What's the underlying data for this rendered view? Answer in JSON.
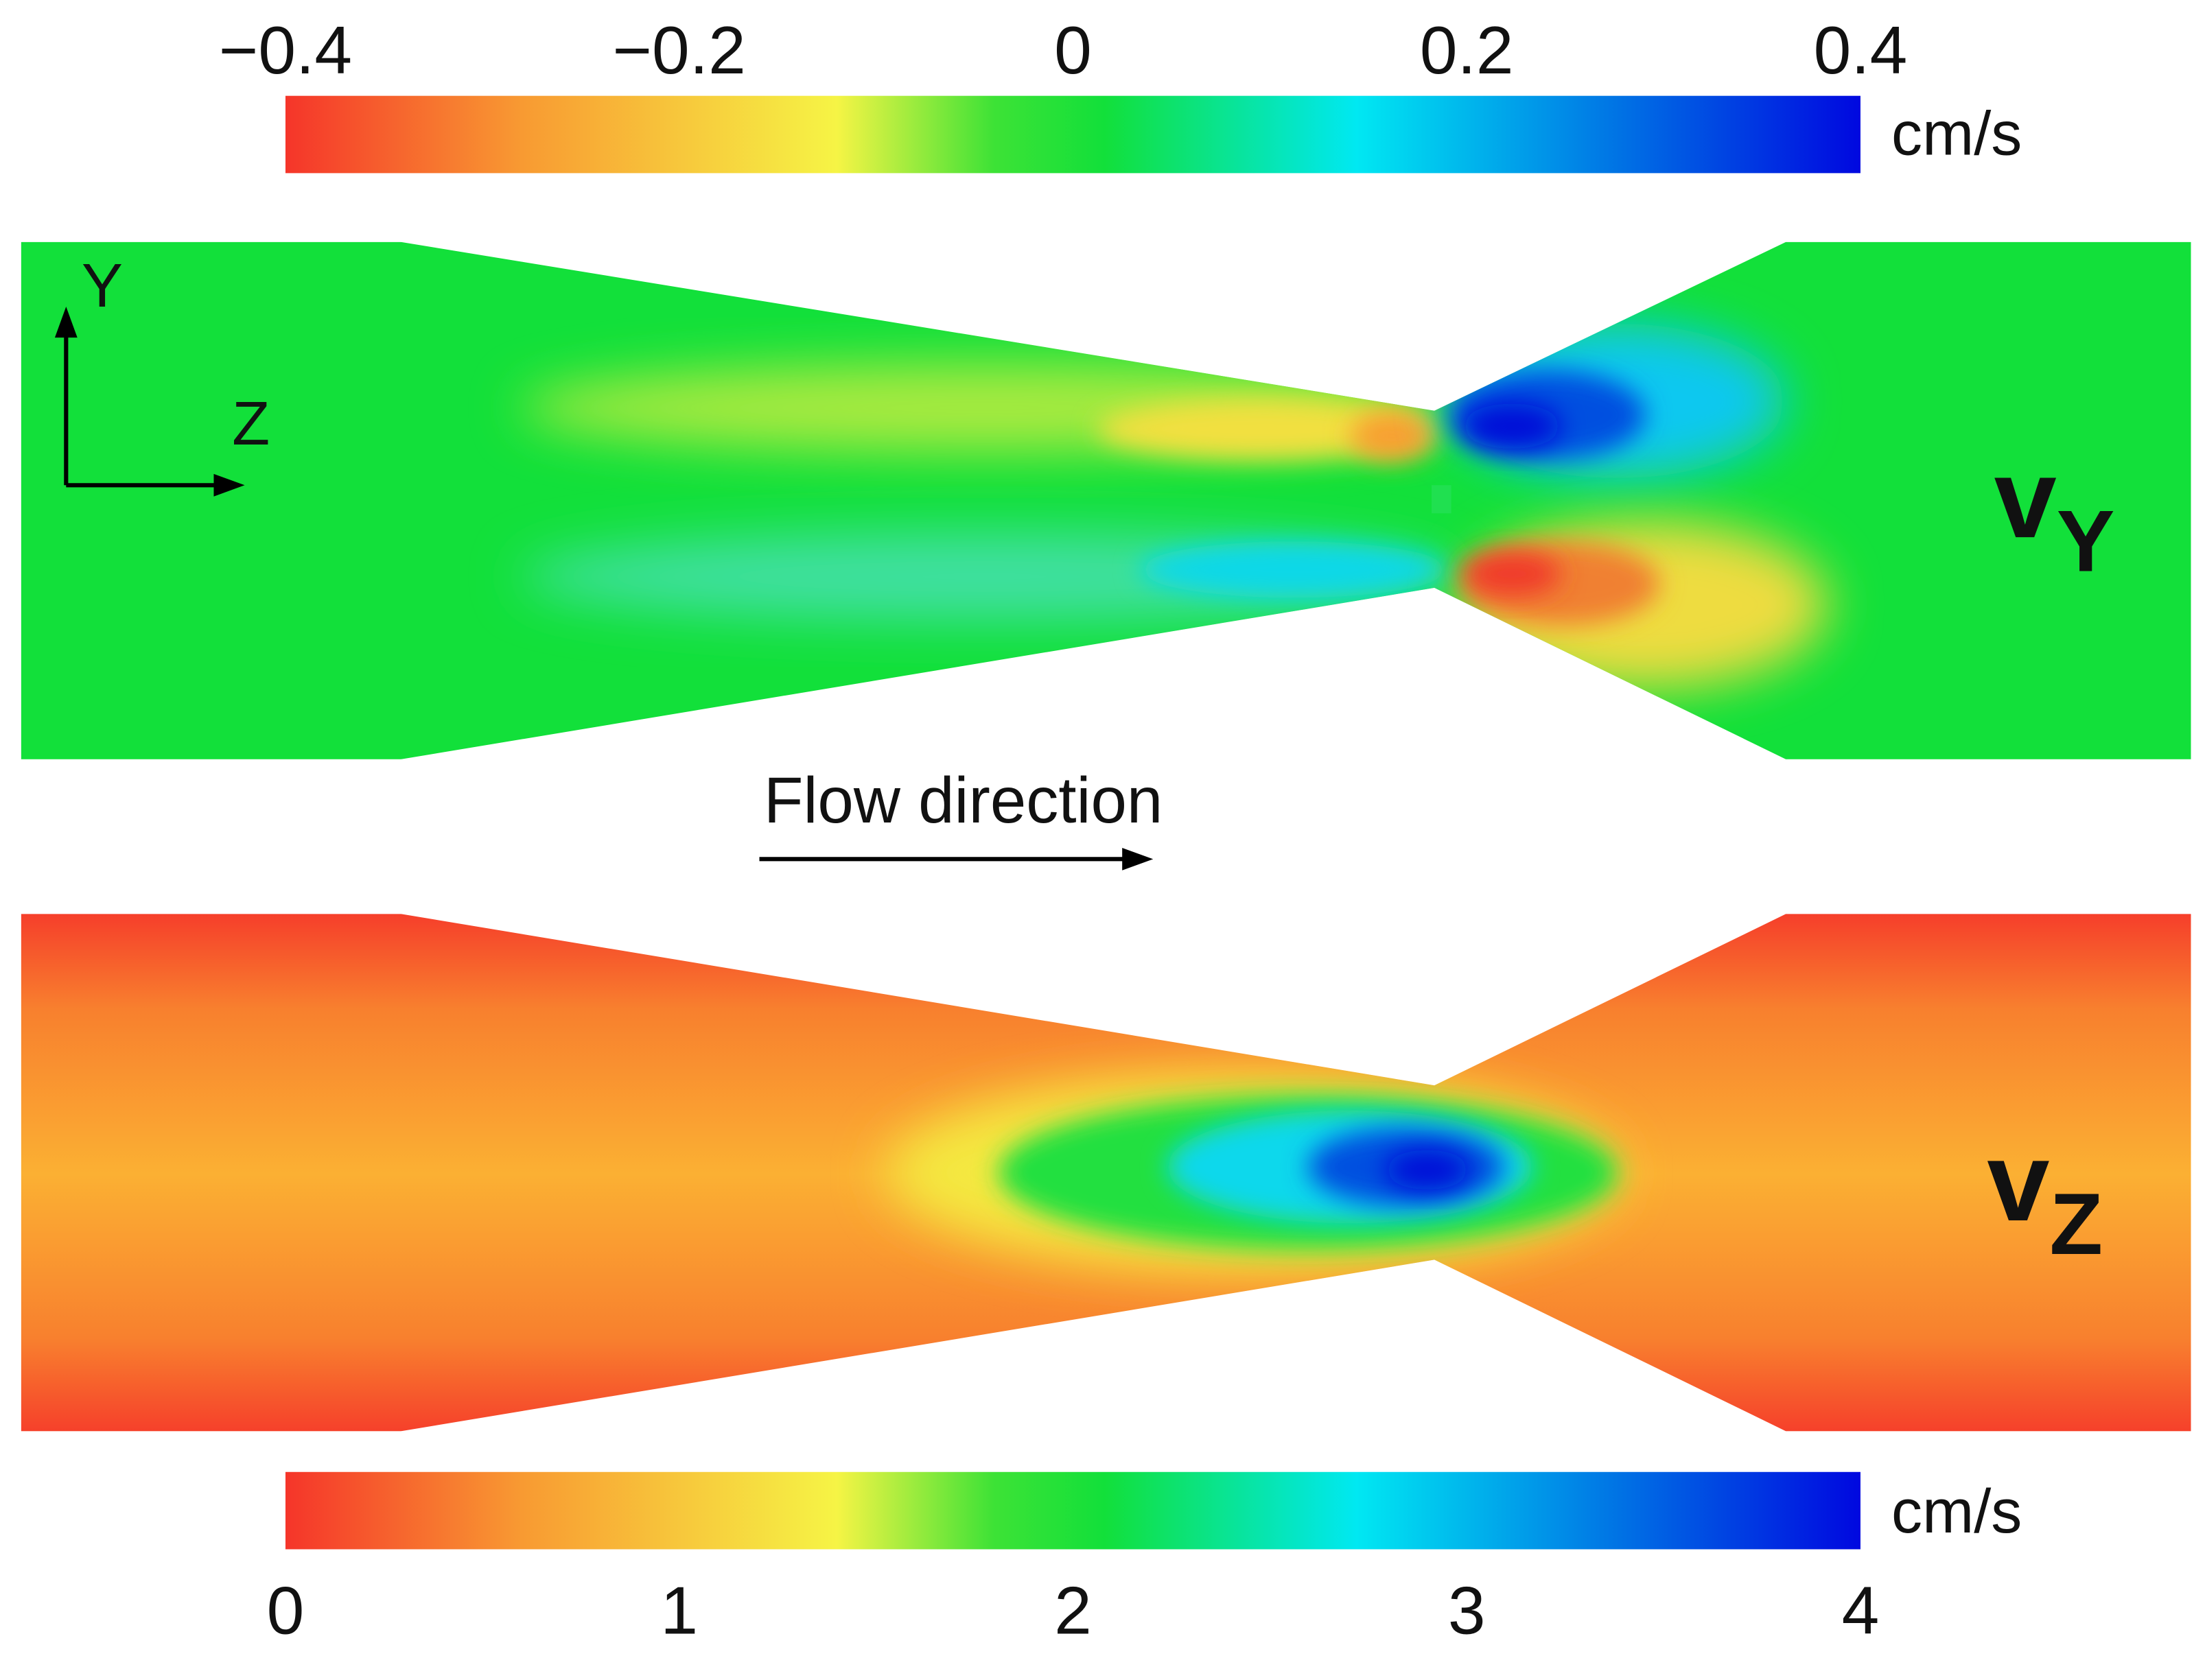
{
  "colorbars": [
    {
      "ticks": [
        {
          "value": -0.4,
          "label": "−0.4"
        },
        {
          "value": -0.2,
          "label": "−0.2"
        },
        0,
        0.2,
        0.4
      ],
      "lim": [
        -0.4,
        0.4
      ],
      "unit": "cm/s"
    },
    {
      "ticks": [
        0,
        1,
        2,
        3,
        4
      ],
      "lim": [
        0,
        4
      ],
      "unit": "cm/s"
    }
  ],
  "panels": [
    {
      "symbol": "v",
      "subscript": "Y"
    },
    {
      "symbol": "v",
      "subscript": "Z"
    }
  ],
  "axes": {
    "vertical": "Y",
    "horizontal": "Z"
  },
  "flow_label": "Flow direction"
}
